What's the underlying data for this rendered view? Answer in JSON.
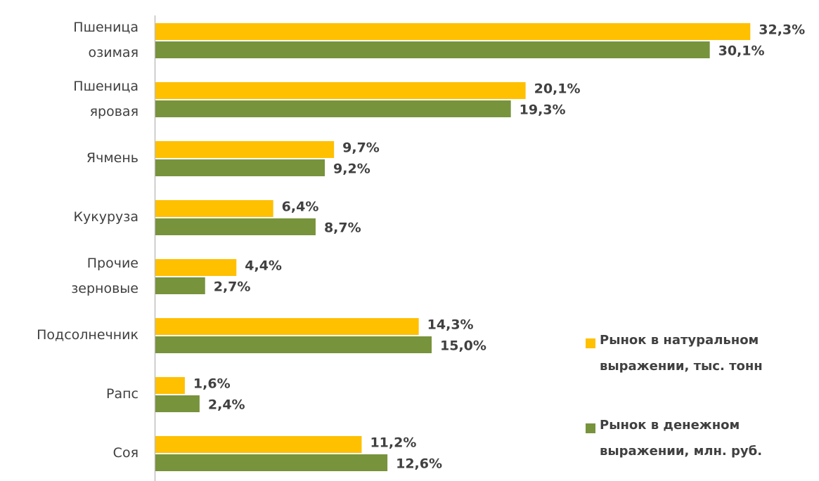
{
  "chart_data": {
    "type": "bar",
    "orientation": "horizontal",
    "categories": [
      "Пшеница\nозимая",
      "Пшеница\nяровая",
      "Ячмень",
      "Кукуруза",
      "Прочие\nзерновые",
      "Подсолнечник",
      "Рапс",
      "Соя"
    ],
    "series": [
      {
        "name": "Рынок в натуральном\nвыражении, тыс. тонн",
        "color": "#ffc000",
        "values": [
          32.3,
          20.1,
          9.7,
          6.4,
          4.4,
          14.3,
          1.6,
          11.2
        ],
        "value_labels": [
          "32,3%",
          "20,1%",
          "9,7%",
          "6,4%",
          "4,4%",
          "14,3%",
          "1,6%",
          "11,2%"
        ]
      },
      {
        "name": "Рынок в денежном\nвыражении, млн. руб.",
        "color": "#77933c",
        "values": [
          30.1,
          19.3,
          9.2,
          8.7,
          2.7,
          15.0,
          2.4,
          12.6
        ],
        "value_labels": [
          "30,1%",
          "19,3%",
          "9,2%",
          "8,7%",
          "2,7%",
          "15,0%",
          "2,4%",
          "12,6%"
        ]
      }
    ],
    "legend": "right"
  }
}
